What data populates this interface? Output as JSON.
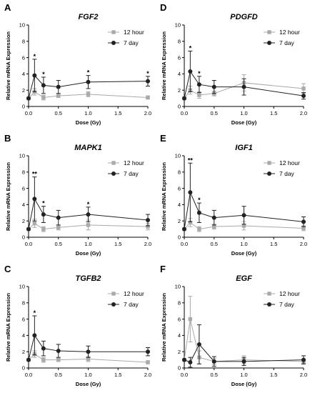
{
  "chart_data": [
    {
      "type": "line",
      "panel_label": "A",
      "title": "FGF2",
      "xlabel": "Dose (Gy)",
      "ylabel": "Relative mRNA Expression",
      "xlim": [
        0,
        2
      ],
      "ylim": [
        0,
        10
      ],
      "xticks": [
        "0.0",
        "0.5",
        "1.0",
        "1.5",
        "2.0"
      ],
      "yticks": [
        "0",
        "2",
        "4",
        "6",
        "8",
        "10"
      ],
      "x": [
        0,
        0.1,
        0.25,
        0.5,
        1,
        2
      ],
      "series": [
        {
          "name": "12 hour",
          "color": "#aaaaaa",
          "marker": "square",
          "values": [
            1,
            1.8,
            1.1,
            1.3,
            1.5,
            1.1
          ],
          "errors": [
            0,
            0.4,
            0.3,
            0.2,
            0.3,
            0.2
          ]
        },
        {
          "name": "7 day",
          "color": "#222222",
          "marker": "circle",
          "values": [
            1,
            3.8,
            2.6,
            2.4,
            3.0,
            3.1
          ],
          "errors": [
            0,
            2.0,
            1.0,
            0.8,
            0.8,
            0.6
          ]
        }
      ],
      "annotations": [
        {
          "x": 0.1,
          "text": "*"
        },
        {
          "x": 0.25,
          "text": "*"
        },
        {
          "x": 1,
          "text": "*"
        },
        {
          "x": 2,
          "text": "*"
        }
      ],
      "legend": "top-right",
      "grid": false
    },
    {
      "type": "line",
      "panel_label": "D",
      "title": "PDGFD",
      "xlabel": "Dose (Gy)",
      "ylabel": "Relative mRNA Expression",
      "xlim": [
        0,
        2
      ],
      "ylim": [
        0,
        10
      ],
      "xticks": [
        "0.0",
        "0.5",
        "1.0",
        "1.5",
        "2.0"
      ],
      "yticks": [
        "0",
        "2",
        "4",
        "6",
        "8",
        "10"
      ],
      "x": [
        0,
        0.1,
        0.25,
        0.5,
        1,
        2
      ],
      "series": [
        {
          "name": "12 hour",
          "color": "#aaaaaa",
          "marker": "square",
          "values": [
            1,
            2.0,
            1.4,
            1.6,
            2.9,
            2.2
          ],
          "errors": [
            0,
            0.5,
            0.4,
            0.3,
            1.0,
            0.6
          ]
        },
        {
          "name": "7 day",
          "color": "#222222",
          "marker": "circle",
          "values": [
            1,
            4.3,
            2.7,
            2.4,
            2.4,
            1.3
          ],
          "errors": [
            0,
            2.5,
            1.0,
            0.8,
            1.0,
            0.4
          ]
        }
      ],
      "annotations": [
        {
          "x": 0.1,
          "text": "*"
        },
        {
          "x": 0.25,
          "text": "*"
        }
      ],
      "legend": "top-right",
      "grid": false
    },
    {
      "type": "line",
      "panel_label": "B",
      "title": "MAPK1",
      "xlabel": "Dose (Gy)",
      "ylabel": "Relative mRNA Expression",
      "xlim": [
        0,
        2
      ],
      "ylim": [
        0,
        10
      ],
      "xticks": [
        "0.0",
        "0.5",
        "1.0",
        "1.5",
        "2.0"
      ],
      "yticks": [
        "0",
        "2",
        "4",
        "6",
        "8",
        "10"
      ],
      "x": [
        0,
        0.1,
        0.25,
        0.5,
        1,
        2
      ],
      "series": [
        {
          "name": "12 hour",
          "color": "#aaaaaa",
          "marker": "square",
          "values": [
            1,
            1.7,
            1.0,
            1.2,
            1.5,
            1.3
          ],
          "errors": [
            0,
            0.5,
            0.3,
            0.3,
            0.6,
            0.4
          ]
        },
        {
          "name": "7 day",
          "color": "#222222",
          "marker": "circle",
          "values": [
            1,
            4.7,
            2.8,
            2.4,
            2.8,
            2.1
          ],
          "errors": [
            0,
            2.7,
            1.0,
            0.9,
            0.9,
            0.7
          ]
        }
      ],
      "annotations": [
        {
          "x": 0.1,
          "text": "**"
        },
        {
          "x": 0.25,
          "text": "*"
        },
        {
          "x": 1,
          "text": "*"
        }
      ],
      "legend": "top-right",
      "grid": false
    },
    {
      "type": "line",
      "panel_label": "E",
      "title": "IGF1",
      "xlabel": "Dose (Gy)",
      "ylabel": "Relative mRNA Expression",
      "xlim": [
        0,
        2
      ],
      "ylim": [
        0,
        10
      ],
      "xticks": [
        "0.0",
        "0.5",
        "1.0",
        "1.5",
        "2.0"
      ],
      "yticks": [
        "0",
        "2",
        "4",
        "6",
        "8",
        "10"
      ],
      "x": [
        0,
        0.1,
        0.25,
        0.5,
        1,
        2
      ],
      "series": [
        {
          "name": "12 hour",
          "color": "#aaaaaa",
          "marker": "square",
          "values": [
            1,
            1.8,
            1.0,
            1.3,
            1.4,
            1.1
          ],
          "errors": [
            0,
            0.5,
            0.3,
            0.3,
            0.5,
            0.3
          ]
        },
        {
          "name": "7 day",
          "color": "#222222",
          "marker": "circle",
          "values": [
            1,
            5.5,
            3.0,
            2.4,
            2.7,
            1.9
          ],
          "errors": [
            0,
            3.6,
            1.2,
            0.9,
            1.1,
            0.6
          ]
        }
      ],
      "annotations": [
        {
          "x": 0.1,
          "text": "**"
        },
        {
          "x": 0.25,
          "text": "*"
        }
      ],
      "legend": "top-right",
      "grid": false
    },
    {
      "type": "line",
      "panel_label": "C",
      "title": "TGFB2",
      "xlabel": "Dose (Gy)",
      "ylabel": "Relative mRNA Expression",
      "xlim": [
        0,
        2
      ],
      "ylim": [
        0,
        10
      ],
      "xticks": [
        "0.0",
        "0.5",
        "1.0",
        "1.5",
        "2.0"
      ],
      "yticks": [
        "0",
        "2",
        "4",
        "6",
        "8",
        "10"
      ],
      "x": [
        0,
        0.1,
        0.25,
        0.5,
        1,
        2
      ],
      "series": [
        {
          "name": "12 hour",
          "color": "#aaaaaa",
          "marker": "square",
          "values": [
            1,
            1.7,
            1.0,
            1.0,
            1.1,
            0.7
          ],
          "errors": [
            0,
            0.4,
            0.3,
            0.2,
            0.3,
            0.2
          ]
        },
        {
          "name": "7 day",
          "color": "#222222",
          "marker": "circle",
          "values": [
            1,
            4.0,
            2.4,
            2.1,
            2.0,
            2.0
          ],
          "errors": [
            0,
            2.4,
            0.9,
            0.8,
            0.7,
            0.5
          ]
        }
      ],
      "annotations": [
        {
          "x": 0.1,
          "text": "*"
        }
      ],
      "legend": "top-right",
      "grid": false
    },
    {
      "type": "line",
      "panel_label": "F",
      "title": "EGF",
      "xlabel": "Dose (Gy)",
      "ylabel": "Relative mRNA Expression",
      "xlim": [
        0,
        2
      ],
      "ylim": [
        0,
        10
      ],
      "xticks": [
        "0.0",
        "0.5",
        "1.0",
        "1.5",
        "2.0"
      ],
      "yticks": [
        "0",
        "2",
        "4",
        "6",
        "8",
        "10"
      ],
      "x": [
        0,
        0.1,
        0.25,
        0.5,
        1,
        2
      ],
      "series": [
        {
          "name": "12 hour",
          "color": "#aaaaaa",
          "marker": "square",
          "values": [
            1,
            6.0,
            1.3,
            0.8,
            1.0,
            0.8
          ],
          "errors": [
            0,
            2.8,
            0.8,
            0.4,
            0.5,
            0.3
          ]
        },
        {
          "name": "7 day",
          "color": "#222222",
          "marker": "circle",
          "values": [
            1,
            0.7,
            2.9,
            0.8,
            0.8,
            1.0
          ],
          "errors": [
            0,
            0.6,
            2.4,
            0.6,
            0.5,
            0.5
          ]
        }
      ],
      "annotations": [],
      "legend": "top-right",
      "grid": false
    }
  ]
}
